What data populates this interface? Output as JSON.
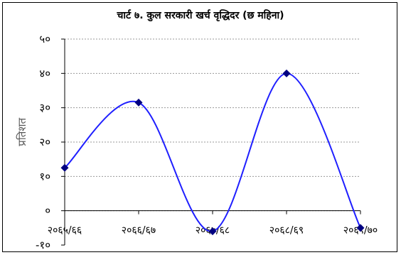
{
  "chart_data": {
    "type": "line",
    "title": "चार्ट ७. कुल सरकारी खर्च वृद्धिदर (छ महिना)",
    "xlabel": "",
    "ylabel": "प्रतिशत",
    "categories": [
      "२०६५/६६",
      "२०६६/६७",
      "२०६७/६८",
      "२०६८/६९",
      "२०६९/७०"
    ],
    "series": [
      {
        "values": [
          12.5,
          31.5,
          -6.0,
          40.0,
          -5.0
        ]
      }
    ],
    "ylim": [
      -10,
      50
    ],
    "yticks": [
      {
        "value": 50,
        "label": "५०"
      },
      {
        "value": 40,
        "label": "४०"
      },
      {
        "value": 30,
        "label": "३०"
      },
      {
        "value": 20,
        "label": "२०"
      },
      {
        "value": 10,
        "label": "१०"
      },
      {
        "value": 0,
        "label": "०"
      },
      {
        "value": -10,
        "label": "-१०"
      }
    ],
    "grid": true,
    "smooth": true,
    "line_color": "#1f1fff",
    "marker_color": "#000080",
    "grid_color": "#999999"
  }
}
